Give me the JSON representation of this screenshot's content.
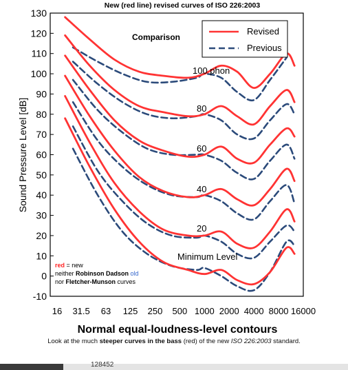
{
  "caption": {
    "part1": "Look at the much ",
    "bold": "steeper curves in the bass",
    "part2": " (red) of the new ",
    "italic": "ISO 226:2003",
    "part3": " standard."
  },
  "footer": {
    "text": "128452"
  },
  "chart_data": {
    "type": "line",
    "title": "New (red line) revised curves of ISO 226:2003",
    "subtitle": "Normal equal-loudness-level contours",
    "inner_title": "Comparison",
    "xlabel": "",
    "ylabel": "Sound Pressure Level [dB]",
    "xscale": "log",
    "xlim": [
      16,
      16000
    ],
    "ylim": [
      -10,
      130
    ],
    "x_ticks": [
      "16",
      "31.5",
      "63",
      "125",
      "250",
      "500",
      "1000",
      "2000",
      "4000",
      "8000",
      "16000"
    ],
    "y_ticks": [
      "130",
      "120",
      "110",
      "100",
      "90",
      "80",
      "70",
      "60",
      "50",
      "40",
      "30",
      "20",
      "10",
      "0",
      "-10"
    ],
    "legend": {
      "position": "top-right",
      "entries": [
        {
          "label": "Revised",
          "color": "#ff3333",
          "style": "solid"
        },
        {
          "label": "Previous",
          "color": "#2b4a7a",
          "style": "dashed"
        }
      ]
    },
    "annotations": {
      "curve_labels": [
        "100 phon",
        "80",
        "60",
        "40",
        "20",
        "Minimum Level"
      ],
      "note": {
        "red": "red",
        "line1": " = new",
        "line2a": "neither ",
        "line2b": "Robinson Dadson",
        "line2c": " old",
        "line3a": "nor ",
        "line3b": "Fletcher-Munson",
        "line3c": " curves"
      }
    },
    "colors": {
      "revised": "#ff3333",
      "previous": "#2b4a7a",
      "note_old": "#3366cc"
    },
    "series": [
      {
        "name": "Revised",
        "phon": 100,
        "x": [
          20,
          40,
          80,
          160,
          315,
          630,
          1000,
          1600,
          2500,
          4000,
          6300,
          10000,
          12500
        ],
        "y": [
          128,
          117,
          107,
          101,
          99,
          98,
          100,
          104,
          101,
          93,
          100,
          110,
          104
        ]
      },
      {
        "name": "Revised",
        "phon": 80,
        "x": [
          20,
          40,
          80,
          160,
          315,
          630,
          1000,
          1600,
          2500,
          4000,
          6300,
          10000,
          12500
        ],
        "y": [
          119,
          104,
          92,
          84,
          81,
          79,
          80,
          84,
          79,
          75,
          84,
          92,
          86
        ]
      },
      {
        "name": "Revised",
        "phon": 60,
        "x": [
          20,
          40,
          80,
          160,
          315,
          630,
          1000,
          1600,
          2500,
          4000,
          6300,
          10000,
          12500
        ],
        "y": [
          109,
          92,
          77,
          67,
          62,
          59,
          60,
          64,
          58,
          56,
          65,
          73,
          69
        ]
      },
      {
        "name": "Revised",
        "phon": 40,
        "x": [
          20,
          40,
          80,
          160,
          315,
          630,
          1000,
          1600,
          2500,
          4000,
          6300,
          10000,
          12500
        ],
        "y": [
          99,
          79,
          62,
          49,
          42,
          39,
          40,
          43,
          38,
          35,
          43,
          53,
          47
        ]
      },
      {
        "name": "Revised",
        "phon": 20,
        "x": [
          20,
          40,
          80,
          160,
          315,
          630,
          1000,
          1600,
          2500,
          4000,
          6300,
          10000,
          12500
        ],
        "y": [
          89,
          66,
          46,
          32,
          23,
          20,
          20,
          22,
          16,
          14,
          22,
          33,
          27
        ]
      },
      {
        "name": "Revised",
        "phon": 0,
        "x": [
          20,
          40,
          80,
          160,
          315,
          630,
          1000,
          1600,
          2500,
          4000,
          6300,
          10000,
          12500
        ],
        "y": [
          78,
          54,
          33,
          17,
          7,
          3,
          1,
          3,
          -2,
          -4,
          2,
          14,
          11
        ]
      },
      {
        "name": "Previous",
        "phon": 100,
        "x": [
          25,
          50,
          100,
          200,
          400,
          800,
          1000,
          1600,
          2500,
          4000,
          6300,
          10000
        ],
        "y": [
          113,
          106,
          100,
          96,
          96,
          98,
          100,
          98,
          91,
          87,
          97,
          108
        ]
      },
      {
        "name": "Previous",
        "phon": 80,
        "x": [
          25,
          50,
          100,
          200,
          400,
          800,
          1000,
          1600,
          2500,
          4000,
          6300,
          10000,
          12500
        ],
        "y": [
          106,
          95,
          86,
          80,
          78,
          79,
          80,
          77,
          70,
          68,
          77,
          85,
          80
        ]
      },
      {
        "name": "Previous",
        "phon": 60,
        "x": [
          25,
          50,
          100,
          200,
          400,
          800,
          1000,
          1600,
          2500,
          4000,
          6300,
          10000,
          12500
        ],
        "y": [
          97,
          82,
          71,
          63,
          60,
          60,
          60,
          57,
          51,
          48,
          57,
          65,
          58
        ]
      },
      {
        "name": "Previous",
        "phon": 40,
        "x": [
          25,
          50,
          100,
          200,
          400,
          800,
          1000,
          1600,
          2500,
          4000,
          6300,
          10000,
          12500
        ],
        "y": [
          86,
          67,
          54,
          45,
          40,
          39,
          40,
          37,
          31,
          28,
          37,
          45,
          36
        ]
      },
      {
        "name": "Previous",
        "phon": 20,
        "x": [
          25,
          50,
          100,
          200,
          400,
          800,
          1000,
          1600,
          2500,
          4000,
          6300,
          10000,
          12500
        ],
        "y": [
          74,
          52,
          37,
          26,
          20,
          19,
          20,
          17,
          11,
          9,
          17,
          25,
          22
        ]
      },
      {
        "name": "Previous",
        "phon": 0,
        "x": [
          25,
          50,
          100,
          200,
          400,
          800,
          1000,
          1600,
          2500,
          4000,
          6300,
          10000,
          12500
        ],
        "y": [
          63,
          40,
          22,
          11,
          5,
          3,
          4,
          0,
          -5,
          -7,
          2,
          17,
          15
        ]
      }
    ]
  }
}
